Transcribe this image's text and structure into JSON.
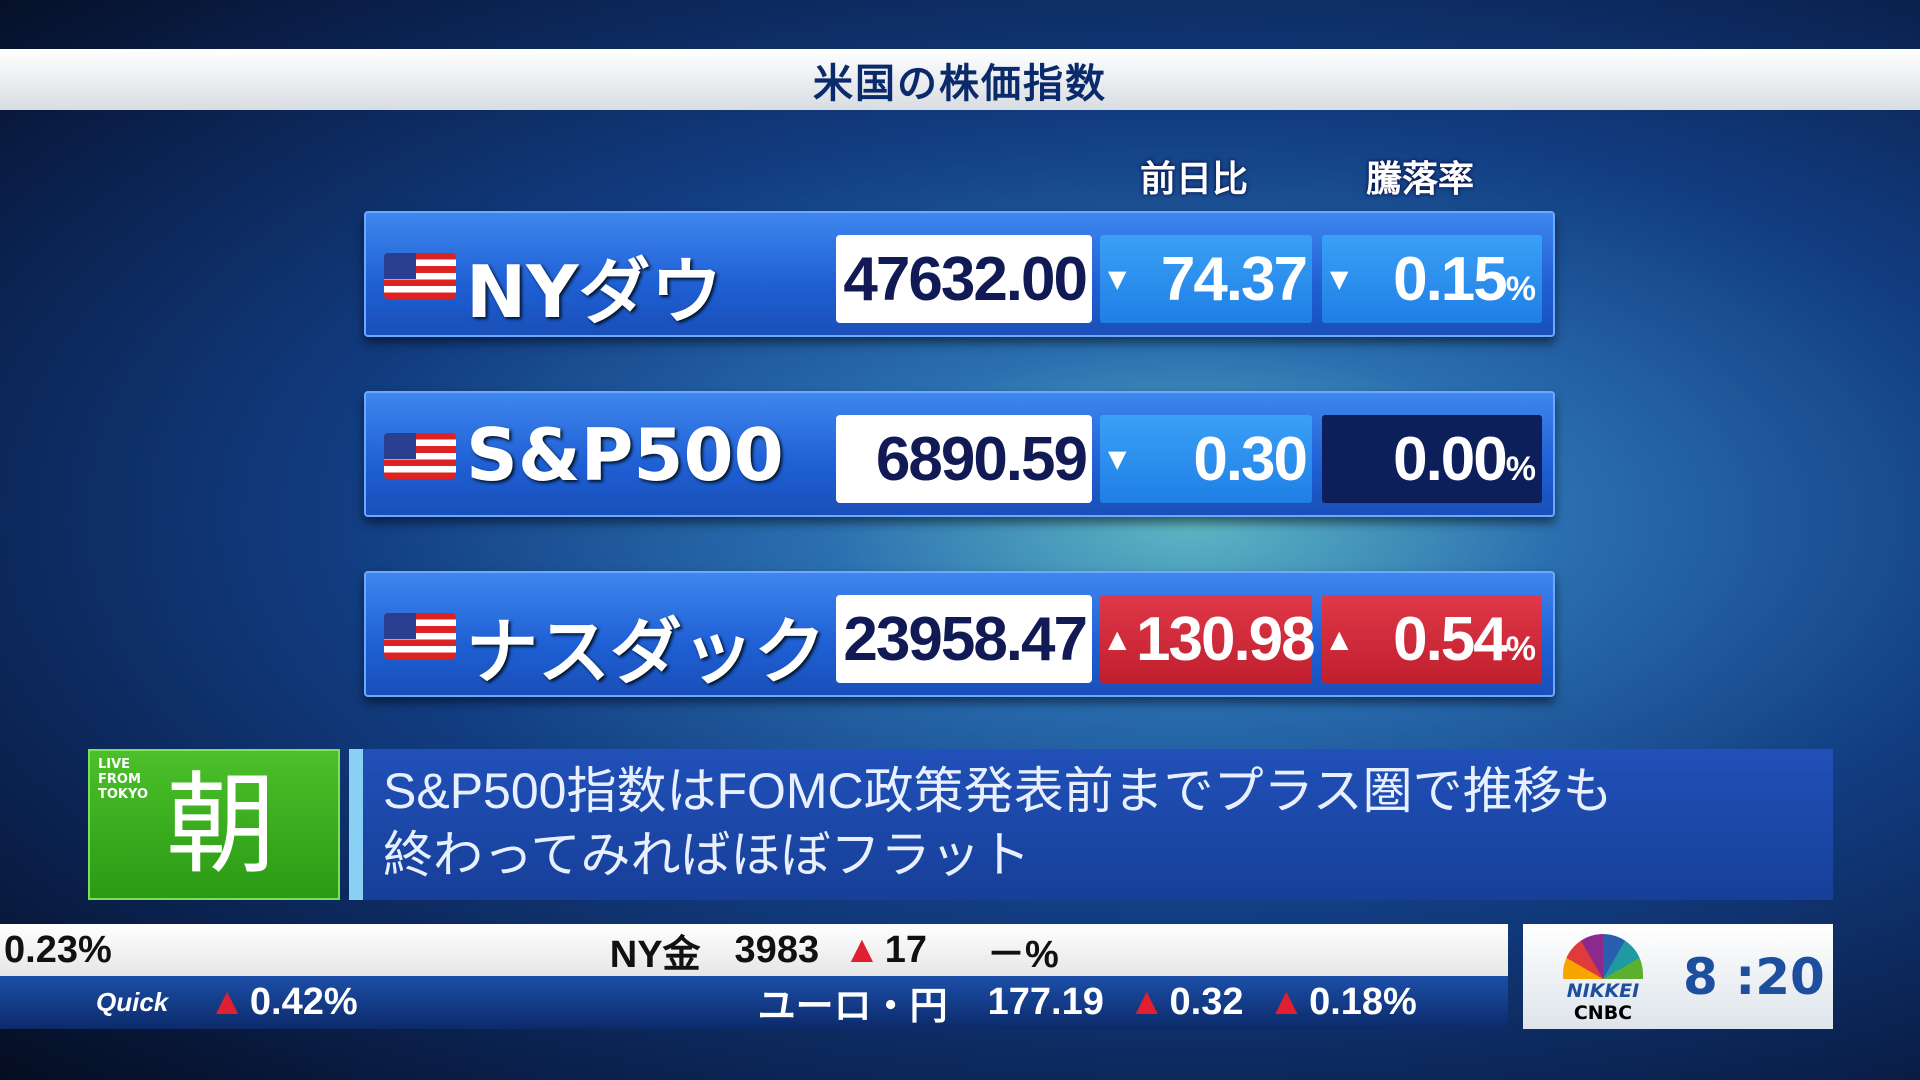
{
  "title": "米国の株価指数",
  "headers": {
    "change": "前日比",
    "rate": "騰落率"
  },
  "rows": [
    {
      "name": "NYダウ",
      "value": "47632.00",
      "change": "74.37",
      "change_dir": "down",
      "rate": "0.15",
      "rate_dir": "down",
      "unit": "%"
    },
    {
      "name": "S&P500",
      "value": "6890.59",
      "change": "0.30",
      "change_dir": "down",
      "rate": "0.00",
      "rate_dir": "flat",
      "unit": "%"
    },
    {
      "name": "ナスダック",
      "value": "23958.47",
      "change": "130.98",
      "change_dir": "up",
      "rate": "0.54",
      "rate_dir": "up",
      "unit": "%"
    }
  ],
  "program": {
    "live": "LIVE FROM TOKYO",
    "kanji": "朝"
  },
  "headline": {
    "line1": "S&P500指数はFOMC政策発表前までプラス圏で推移も",
    "line2": "終わってみればほぼフラット"
  },
  "ticker_top": {
    "left": "0.23%",
    "item": "NY金",
    "value": "3983",
    "arrow": "▲",
    "change": "17",
    "rate": "－%"
  },
  "ticker_bottom": {
    "source": "Quick",
    "rate1": "0.42%",
    "item": "ユーロ・円",
    "value": "177.19",
    "change": "0.32",
    "rate": "0.18%",
    "arrow": "▲"
  },
  "logo": {
    "line1": "NIKKEI",
    "line2": "CNBC"
  },
  "clock": "8 :20",
  "colors": {
    "up": "#c01f2e",
    "down": "#1f7fe6",
    "flat": "#0c1f5a",
    "panel": "#1e5fd4"
  }
}
